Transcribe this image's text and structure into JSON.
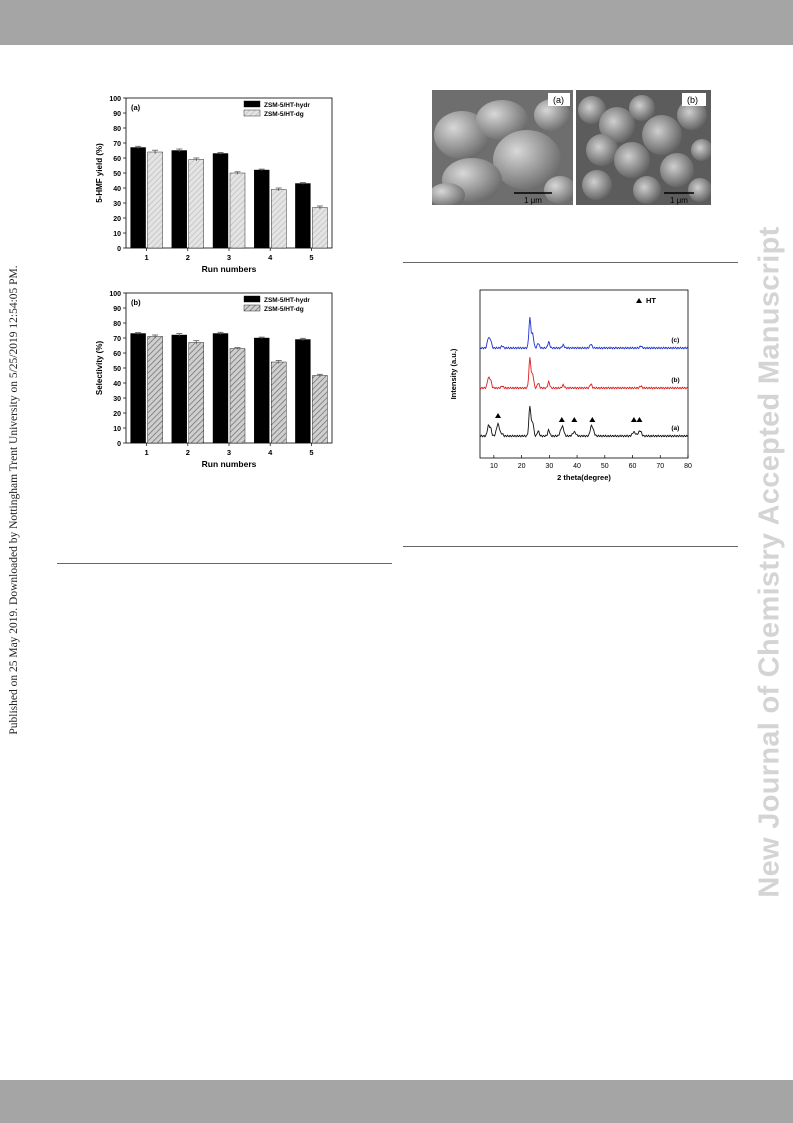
{
  "watermark": "New Journal of Chemistry Accepted Manuscript",
  "published_line": "Published on 25 May 2019. Downloaded by Nottingham Trent University on 5/25/2019 12:54:05 PM.",
  "colors": {
    "band": "#a5a5a5",
    "hydr": "#000000",
    "dg_a": "#e4e4e4",
    "dg_b": "#9a9a9a",
    "xrd_c": "#1f33d6",
    "xrd_b": "#e01e1e",
    "xrd_a": "#111111"
  },
  "chart_data": [
    {
      "type": "bar",
      "panel": "(a)",
      "categories": [
        "1",
        "2",
        "3",
        "4",
        "5"
      ],
      "xlabel": "Run numbers",
      "ylabel": "5-HMF yield (%)",
      "ylim": [
        0,
        100
      ],
      "yticks": [
        "0",
        "10",
        "20",
        "30",
        "40",
        "50",
        "60",
        "70",
        "80",
        "90",
        "100"
      ],
      "legend_position": "top-right",
      "series": [
        {
          "name": "ZSM-5/HT-hydr",
          "values": [
            67,
            65,
            63,
            52,
            43
          ],
          "errors": [
            0.8,
            1,
            0.6,
            0.6,
            0.6
          ]
        },
        {
          "name": "ZSM-5/HT-dg",
          "values": [
            64,
            59,
            50,
            39,
            27
          ],
          "errors": [
            1.2,
            1,
            0.8,
            1,
            1
          ]
        }
      ]
    },
    {
      "type": "bar",
      "panel": "(b)",
      "categories": [
        "1",
        "2",
        "3",
        "4",
        "5"
      ],
      "xlabel": "Run numbers",
      "ylabel": "Selectivity (%)",
      "ylim": [
        0,
        100
      ],
      "yticks": [
        "0",
        "10",
        "20",
        "30",
        "40",
        "50",
        "60",
        "70",
        "80",
        "90",
        "100"
      ],
      "legend_position": "top-right",
      "series": [
        {
          "name": "ZSM-5/HT-hydr",
          "values": [
            73,
            72,
            73,
            70,
            69
          ],
          "errors": [
            0.6,
            1,
            0.8,
            0.6,
            0.8
          ]
        },
        {
          "name": "ZSM-5/HT-dg",
          "values": [
            71,
            67,
            63,
            54,
            45
          ],
          "errors": [
            1,
            1.2,
            0.6,
            1,
            0.8
          ]
        }
      ]
    },
    {
      "type": "line",
      "xlabel": "2 theta(degree)",
      "ylabel": "Intensity (a.u.)",
      "xlim": [
        5,
        80
      ],
      "xticks": [
        "10",
        "20",
        "30",
        "40",
        "50",
        "60",
        "70",
        "80"
      ],
      "legend": "HT",
      "curve_labels": [
        "(c)",
        "(b)",
        "(a)"
      ],
      "ht_peak_positions": [
        11.5,
        34.5,
        39,
        45.5,
        60.5,
        62.5
      ]
    }
  ],
  "sem": {
    "labels": [
      "(a)",
      "(b)"
    ],
    "scale_bars": [
      "1 μm",
      "1 μm"
    ]
  }
}
